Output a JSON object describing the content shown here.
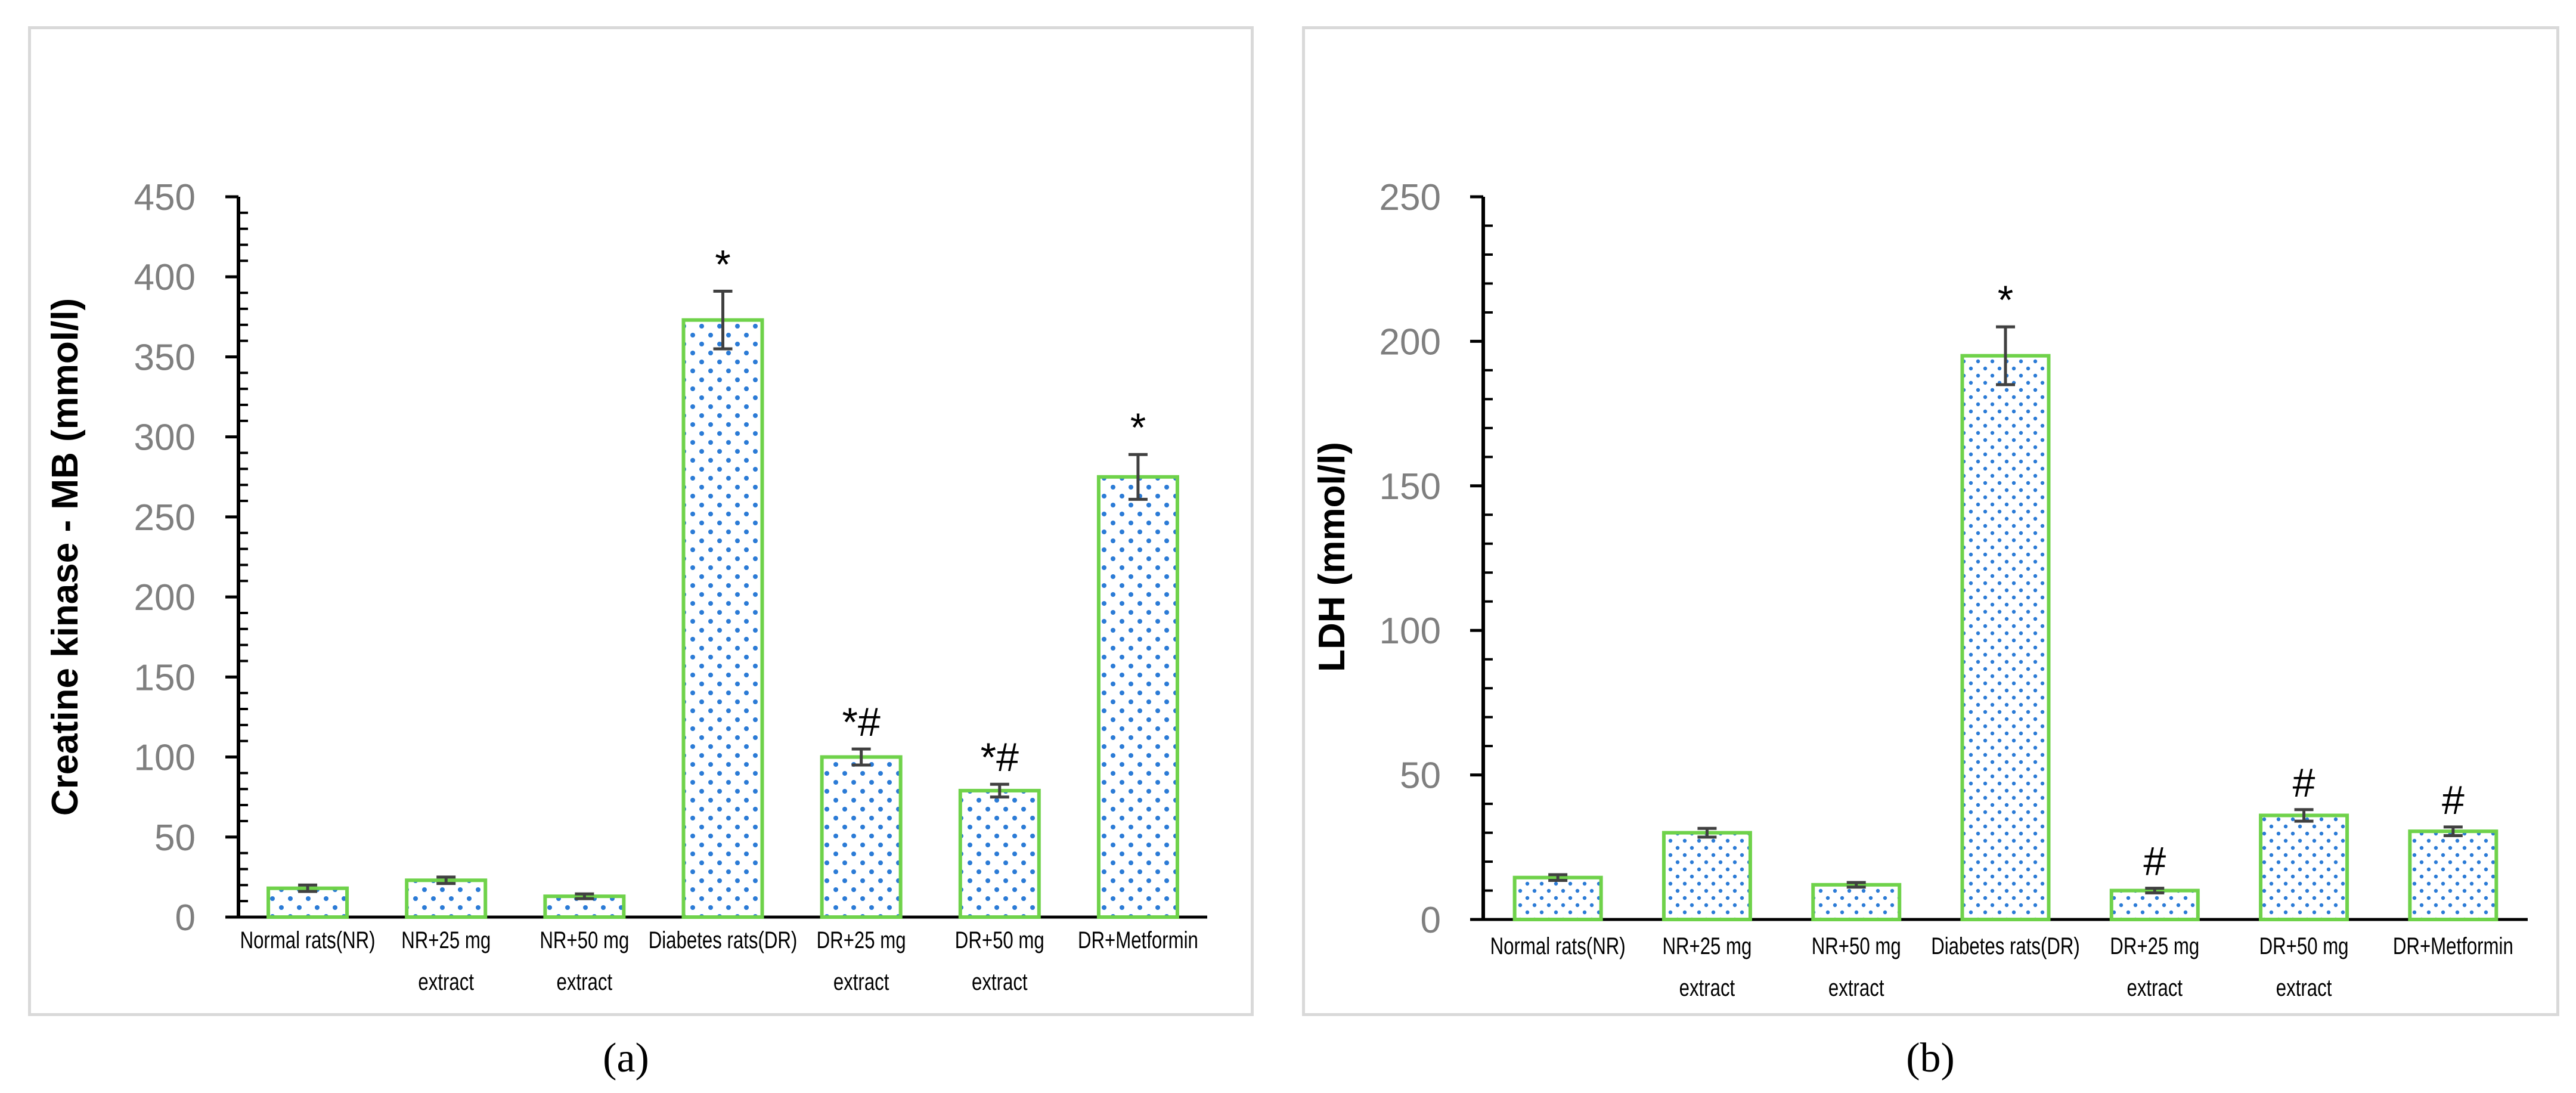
{
  "chart_data": [
    {
      "type": "bar",
      "panel": "(a)",
      "title": "",
      "xlabel": "",
      "ylabel": "Creatine kinase - MB (mmol/l)",
      "ylim": [
        0,
        450
      ],
      "yticks": [
        0,
        50,
        100,
        150,
        200,
        250,
        300,
        350,
        400,
        450
      ],
      "categories": [
        [
          "Normal rats(NR)"
        ],
        [
          "NR+25 mg",
          "extract"
        ],
        [
          "NR+50 mg",
          "extract"
        ],
        [
          "Diabetes rats(DR)"
        ],
        [
          "DR+25 mg",
          "extract"
        ],
        [
          "DR+50 mg",
          "extract"
        ],
        [
          "DR+Metformin"
        ]
      ],
      "values": [
        18,
        23,
        13,
        373,
        100,
        79,
        275
      ],
      "errors": [
        2,
        2,
        1.5,
        18,
        5,
        4,
        14
      ],
      "annotations": [
        "",
        "",
        "",
        "*",
        "*#",
        "*#",
        "*"
      ],
      "bar_fill": "#ffffff",
      "bar_edge": "#6fd24a",
      "dot_color": "#2b7bd6",
      "error_color": "#404040",
      "axis_color": "#000000"
    },
    {
      "type": "bar",
      "panel": "(b)",
      "title": "",
      "xlabel": "",
      "ylabel": "LDH (mmol/l)",
      "ylim": [
        0,
        250
      ],
      "yticks": [
        0,
        50,
        100,
        150,
        200,
        250
      ],
      "categories": [
        [
          "Normal rats(NR)"
        ],
        [
          "NR+25 mg",
          "extract"
        ],
        [
          "NR+50 mg",
          "extract"
        ],
        [
          "Diabetes rats(DR)"
        ],
        [
          "DR+25 mg",
          "extract"
        ],
        [
          "DR+50 mg",
          "extract"
        ],
        [
          "DR+Metformin"
        ]
      ],
      "values": [
        14.5,
        30,
        12,
        195,
        10,
        36,
        30.5
      ],
      "errors": [
        1,
        1.5,
        0.8,
        10,
        0.8,
        2,
        1.5
      ],
      "annotations": [
        "",
        "",
        "",
        "*",
        "#",
        "#",
        "#"
      ],
      "bar_fill": "#ffffff",
      "bar_edge": "#6fd24a",
      "dot_color": "#2b7bd6",
      "error_color": "#404040",
      "axis_color": "#000000"
    }
  ],
  "labels": {
    "panel_a": "(a)",
    "panel_b": "(b)"
  }
}
